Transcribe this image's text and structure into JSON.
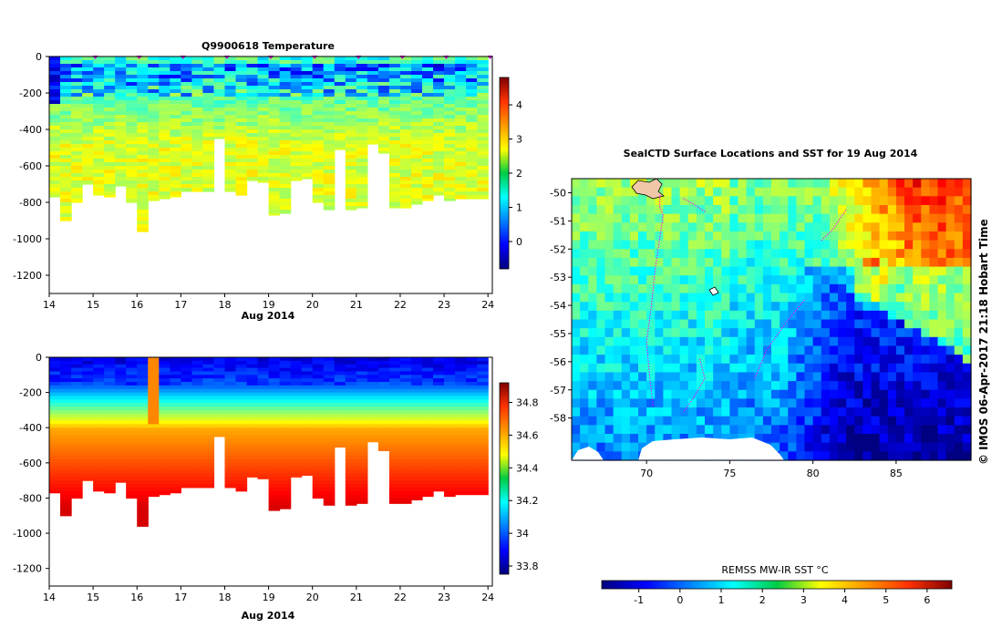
{
  "chart_data": [
    {
      "type": "heatmap",
      "title": "Q9900618  Temperature",
      "xlabel": "Aug 2014",
      "x_ticks": [
        "14",
        "15",
        "16",
        "17",
        "18",
        "19",
        "20",
        "21",
        "22",
        "23",
        "24"
      ],
      "y_ticks": [
        "0",
        "-200",
        "-400",
        "-600",
        "-800",
        "-1000",
        "-1200"
      ],
      "xlim": [
        14,
        24.1
      ],
      "ylim": [
        -1300,
        0
      ],
      "profile_markers_day": [
        15.05,
        16.05,
        17.05,
        18.05,
        19.05,
        20.05,
        21.05,
        22.05,
        23.05,
        24.05
      ],
      "colorbar": {
        "ticks": [
          "0",
          "1",
          "2",
          "3",
          "4"
        ],
        "range": [
          -0.8,
          4.8
        ]
      },
      "profile_max_depth": [
        {
          "day": 14.0,
          "depth": 770
        },
        {
          "day": 14.25,
          "depth": 900
        },
        {
          "day": 14.5,
          "depth": 800
        },
        {
          "day": 14.75,
          "depth": 700
        },
        {
          "day": 15.0,
          "depth": 760
        },
        {
          "day": 15.25,
          "depth": 770
        },
        {
          "day": 15.5,
          "depth": 710
        },
        {
          "day": 15.75,
          "depth": 800
        },
        {
          "day": 16.0,
          "depth": 960
        },
        {
          "day": 16.25,
          "depth": 790
        },
        {
          "day": 16.5,
          "depth": 780
        },
        {
          "day": 16.75,
          "depth": 770
        },
        {
          "day": 17.0,
          "depth": 740
        },
        {
          "day": 17.25,
          "depth": 740
        },
        {
          "day": 17.5,
          "depth": 740
        },
        {
          "day": 17.75,
          "depth": 450
        },
        {
          "day": 18.0,
          "depth": 740
        },
        {
          "day": 18.25,
          "depth": 760
        },
        {
          "day": 18.5,
          "depth": 680
        },
        {
          "day": 18.75,
          "depth": 690
        },
        {
          "day": 19.0,
          "depth": 870
        },
        {
          "day": 19.25,
          "depth": 860
        },
        {
          "day": 19.5,
          "depth": 680
        },
        {
          "day": 19.75,
          "depth": 670
        },
        {
          "day": 20.0,
          "depth": 800
        },
        {
          "day": 20.25,
          "depth": 840
        },
        {
          "day": 20.5,
          "depth": 510
        },
        {
          "day": 20.75,
          "depth": 840
        },
        {
          "day": 21.0,
          "depth": 830
        },
        {
          "day": 21.25,
          "depth": 480
        },
        {
          "day": 21.5,
          "depth": 530
        },
        {
          "day": 21.75,
          "depth": 830
        },
        {
          "day": 22.0,
          "depth": 830
        },
        {
          "day": 22.25,
          "depth": 810
        },
        {
          "day": 22.5,
          "depth": 790
        },
        {
          "day": 22.75,
          "depth": 760
        },
        {
          "day": 23.0,
          "depth": 790
        },
        {
          "day": 23.25,
          "depth": 780
        },
        {
          "day": 23.5,
          "depth": 780
        },
        {
          "day": 23.75,
          "depth": 780
        }
      ]
    },
    {
      "type": "heatmap",
      "title": "",
      "xlabel": "Aug 2014",
      "x_ticks": [
        "14",
        "15",
        "16",
        "17",
        "18",
        "19",
        "20",
        "21",
        "22",
        "23",
        "24"
      ],
      "y_ticks": [
        "0",
        "-200",
        "-400",
        "-600",
        "-800",
        "-1000",
        "-1200"
      ],
      "xlim": [
        14,
        24.1
      ],
      "ylim": [
        -1300,
        0
      ],
      "colorbar": {
        "ticks": [
          "33.8",
          "34",
          "34.2",
          "34.4",
          "34.6",
          "34.8"
        ],
        "range": [
          33.75,
          34.92
        ]
      }
    },
    {
      "type": "heatmap",
      "title": "SealCTD Surface Locations and SST for 19 Aug 2014",
      "x_ticks": [
        "70",
        "75",
        "80",
        "85"
      ],
      "y_ticks": [
        "-50",
        "-51",
        "-52",
        "-53",
        "-54",
        "-55",
        "-56",
        "-57",
        "-58"
      ],
      "xlim": [
        65.5,
        89.5
      ],
      "ylim": [
        -59.5,
        -49.5
      ],
      "colorbar": {
        "label": "REMSS MW-IR SST °C",
        "ticks": [
          "-1",
          "0",
          "1",
          "2",
          "3",
          "4",
          "5",
          "6"
        ],
        "range": [
          -1.9,
          6.6
        ]
      }
    }
  ],
  "side_text": "© IMOS 06-Apr-2017 21:18 Hobart Time",
  "colors": {
    "marker": "#cc00cc",
    "track": "#ff00ff",
    "land": "#f0c8a8"
  }
}
